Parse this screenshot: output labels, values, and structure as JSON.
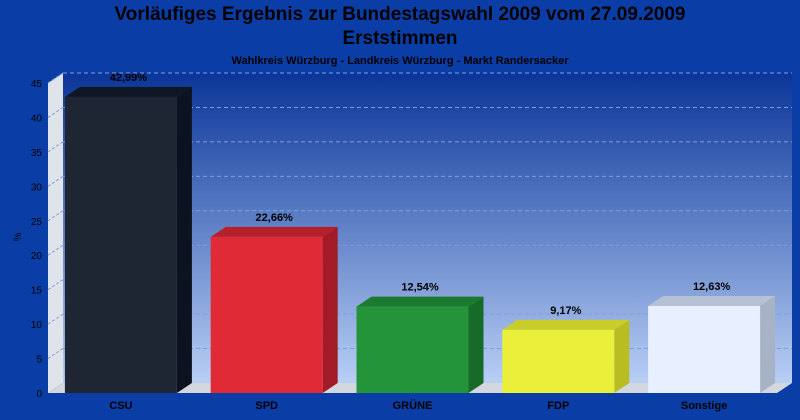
{
  "header": {
    "title_line1": "Vorläufiges Ergebnis zur Bundestagswahl 2009 vom 27.09.2009",
    "title_line2": "Erststimmen",
    "subtitle": "Wahlkreis Würzburg - Landkreis Würzburg - Markt Randersacker"
  },
  "chart_data": {
    "type": "bar",
    "title": "Vorläufiges Ergebnis zur Bundestagswahl 2009 vom 27.09.2009 Erststimmen",
    "subtitle": "Wahlkreis Würzburg - Landkreis Würzburg - Markt Randersacker",
    "xlabel": "",
    "ylabel": "%",
    "ylim": [
      0,
      45
    ],
    "yticks": [
      0,
      5,
      10,
      15,
      20,
      25,
      30,
      35,
      40,
      45
    ],
    "grid": true,
    "categories": [
      "CSU",
      "SPD",
      "GRÜNE",
      "FDP",
      "Sonstige"
    ],
    "values": [
      42.99,
      22.66,
      12.54,
      9.17,
      12.63
    ],
    "data_labels": [
      "42,99%",
      "22,66%",
      "12,54%",
      "9,17%",
      "12,63%"
    ],
    "colors": [
      "#1e2533",
      "#e02a35",
      "#24943a",
      "#eaf03a",
      "#e8f0ff"
    ],
    "side_colors": [
      "#0c1220",
      "#a11c26",
      "#176b28",
      "#b9bd22",
      "#a8b2c6"
    ],
    "top_colors": [
      "#0f1626",
      "#b5202b",
      "#1c7a2f",
      "#c9cd2a",
      "#b7c1d6"
    ]
  }
}
